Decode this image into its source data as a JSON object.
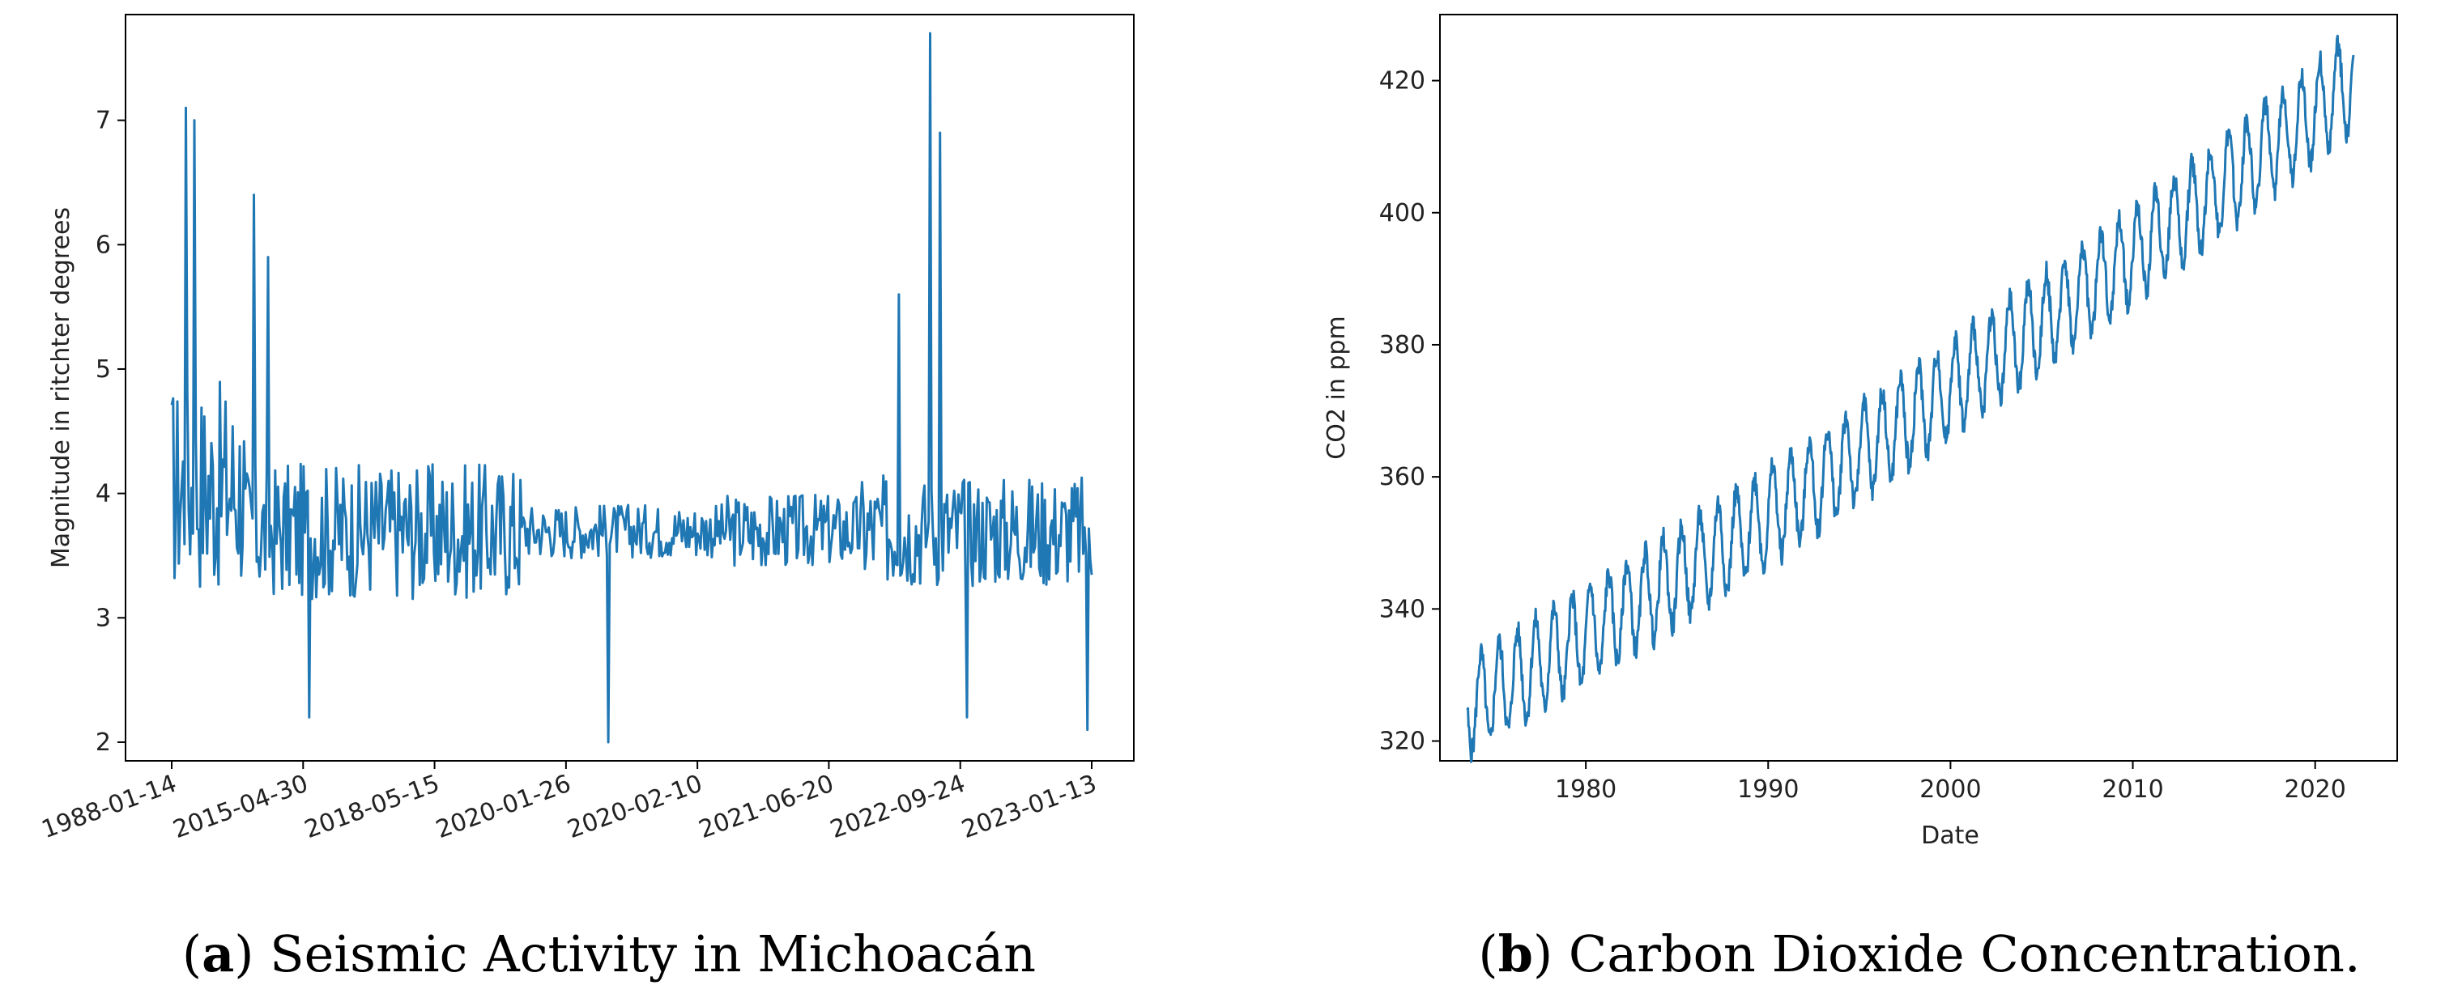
{
  "figure": {
    "caption_a": {
      "open": "(",
      "label": "a",
      "close": ")",
      "text": " Seismic Activity in Michoacán"
    },
    "caption_b": {
      "open": "(",
      "label": "b",
      "close": ")",
      "text": " Carbon Dioxide Concentration."
    }
  },
  "chart_data": [
    {
      "type": "line",
      "title": "",
      "xlabel": "",
      "ylabel": "Magnitude in ritchter degrees",
      "color": "#1f77b4",
      "x_tick_labels": [
        "1988-01-14",
        "2015-04-30",
        "2018-05-15",
        "2020-01-26",
        "2020-02-10",
        "2021-06-20",
        "2022-09-24",
        "2023-01-13"
      ],
      "y_ticks": [
        2,
        3,
        4,
        5,
        6,
        7
      ],
      "ylim": [
        1.85,
        7.85
      ],
      "n_points": 650,
      "baseline_magnitude": 3.7,
      "notable_peaks": [
        {
          "index_fraction": 0.015,
          "value": 7.1
        },
        {
          "index_fraction": 0.025,
          "value": 7.0
        },
        {
          "index_fraction": 0.09,
          "value": 6.4
        },
        {
          "index_fraction": 0.105,
          "value": 5.9
        },
        {
          "index_fraction": 0.825,
          "value": 7.7
        },
        {
          "index_fraction": 0.835,
          "value": 6.9
        },
        {
          "index_fraction": 0.79,
          "value": 5.6
        }
      ],
      "notable_lows": [
        {
          "index_fraction": 0.475,
          "value": 2.0
        },
        {
          "index_fraction": 0.995,
          "value": 2.1
        },
        {
          "index_fraction": 0.15,
          "value": 2.2
        },
        {
          "index_fraction": 0.865,
          "value": 2.2
        }
      ]
    },
    {
      "type": "line",
      "title": "",
      "xlabel": "Date",
      "ylabel": "CO2 in ppm",
      "color": "#1f77b4",
      "x_ticks": [
        1980,
        1990,
        2000,
        2010,
        2020
      ],
      "y_ticks": [
        320,
        340,
        360,
        380,
        400,
        420
      ],
      "xlim": [
        1972,
        2024.5
      ],
      "ylim": [
        317,
        430
      ],
      "x_range": [
        1973.5,
        2022.1
      ],
      "start_value": 325,
      "end_value": 420,
      "seasonal_amplitude": 7
    }
  ]
}
